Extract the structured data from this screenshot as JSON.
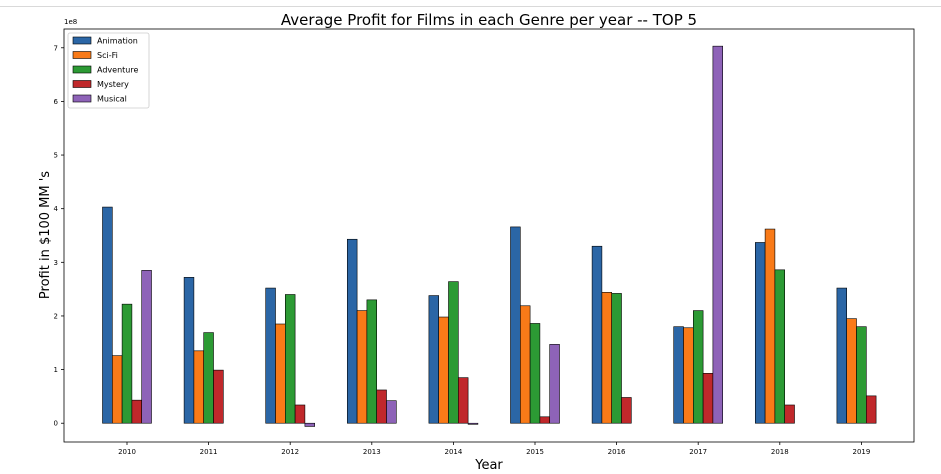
{
  "chart_data": {
    "type": "bar",
    "title": "Average Profit for Films in each Genre per year -- TOP 5",
    "xlabel": "Year",
    "ylabel": "Profit in $100 MM 's",
    "y_offset_text": "1e8",
    "ylim": [
      -0.35,
      7.35
    ],
    "y_ticks": [
      0,
      1,
      2,
      3,
      4,
      5,
      6,
      7
    ],
    "categories": [
      "2010",
      "2011",
      "2012",
      "2013",
      "2014",
      "2015",
      "2016",
      "2017",
      "2018",
      "2019"
    ],
    "legend_position": "upper left",
    "grid": false,
    "series": [
      {
        "name": "Animation",
        "color": "#2b66a6",
        "values": [
          4.03,
          2.72,
          2.52,
          3.43,
          2.38,
          3.66,
          3.3,
          1.8,
          3.37,
          2.52
        ]
      },
      {
        "name": "Sci-Fi",
        "color": "#f97a18",
        "values": [
          1.26,
          1.35,
          1.85,
          2.1,
          1.98,
          2.19,
          2.44,
          1.78,
          3.62,
          1.95
        ]
      },
      {
        "name": "Adventure",
        "color": "#2c9a34",
        "values": [
          2.22,
          1.69,
          2.4,
          2.3,
          2.64,
          1.86,
          2.42,
          2.1,
          2.86,
          1.8
        ]
      },
      {
        "name": "Mystery",
        "color": "#c0282b",
        "values": [
          0.43,
          0.99,
          0.34,
          0.62,
          0.85,
          0.12,
          0.48,
          0.93,
          0.34,
          0.51
        ]
      },
      {
        "name": "Musical",
        "color": "#8e63b8",
        "values": [
          2.85,
          null,
          -0.06,
          0.42,
          -0.02,
          1.47,
          null,
          7.03,
          null,
          null
        ]
      }
    ]
  }
}
